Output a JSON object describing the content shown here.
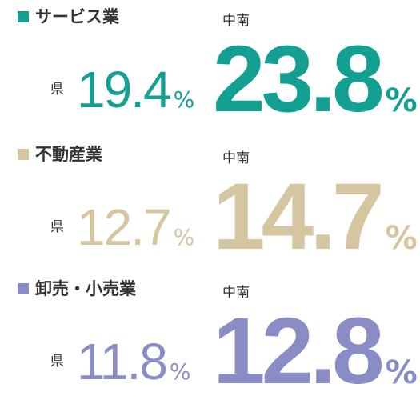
{
  "unit": "%",
  "items": [
    {
      "name": "サービス業",
      "color": "#13a093",
      "pref_label": "県",
      "pref_value": "19.4",
      "region_label": "中南",
      "region_value": "23.8"
    },
    {
      "name": "不動産業",
      "color": "#d5c5a1",
      "pref_label": "県",
      "pref_value": "12.7",
      "region_label": "中南",
      "region_value": "14.7"
    },
    {
      "name": "卸売・小売業",
      "color": "#8a8cc6",
      "pref_label": "県",
      "pref_value": "11.8",
      "region_label": "中南",
      "region_value": "12.8"
    }
  ]
}
